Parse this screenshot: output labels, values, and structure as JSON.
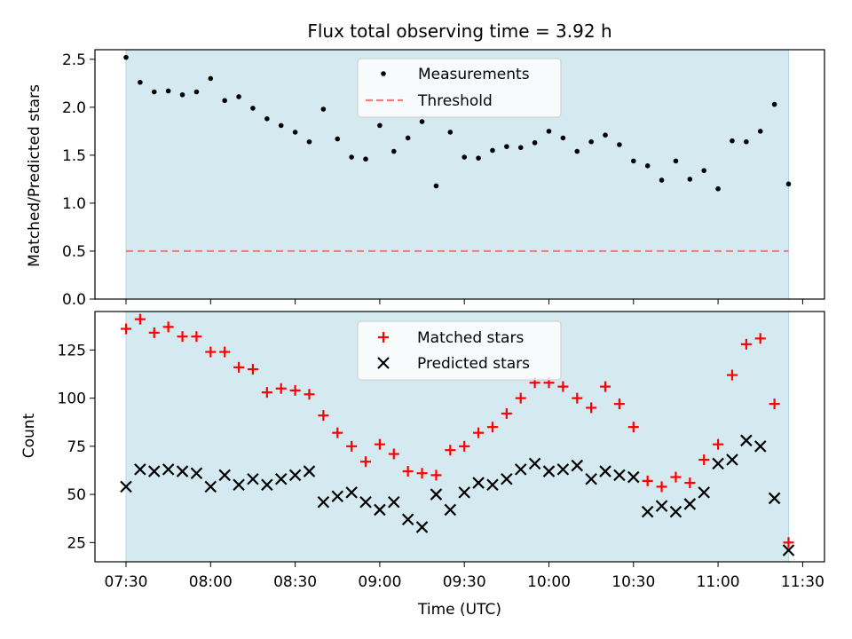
{
  "chart_data": [
    {
      "type": "scatter",
      "title": "Flux total observing time = 3.92 h",
      "xlabel": "",
      "ylabel": "Matched/Predicted stars",
      "ylim": [
        0,
        2.6
      ],
      "yticks": [
        "0.0",
        "0.5",
        "1.0",
        "1.5",
        "2.0",
        "2.5"
      ],
      "grid": false,
      "legend": "top-center",
      "shaded_interval": [
        "07:30",
        "11:25"
      ],
      "colors": {
        "shade": "#d4eaf0",
        "measurements": "#000000",
        "threshold": "#f08080"
      },
      "series": [
        {
          "name": "Measurements",
          "marker": "dot",
          "x": [
            "07:30",
            "07:35",
            "07:40",
            "07:45",
            "07:50",
            "07:55",
            "08:00",
            "08:05",
            "08:10",
            "08:15",
            "08:20",
            "08:25",
            "08:30",
            "08:35",
            "08:40",
            "08:45",
            "08:50",
            "08:55",
            "09:00",
            "09:05",
            "09:10",
            "09:15",
            "09:20",
            "09:25",
            "09:30",
            "09:35",
            "09:40",
            "09:45",
            "09:50",
            "09:55",
            "10:00",
            "10:05",
            "10:10",
            "10:15",
            "10:20",
            "10:25",
            "10:30",
            "10:35",
            "10:40",
            "10:45",
            "10:50",
            "10:55",
            "11:00",
            "11:05",
            "11:10",
            "11:15",
            "11:20",
            "11:25"
          ],
          "values": [
            2.52,
            2.26,
            2.16,
            2.17,
            2.13,
            2.16,
            2.3,
            2.07,
            2.11,
            1.99,
            1.88,
            1.81,
            1.74,
            1.64,
            1.98,
            1.67,
            1.48,
            1.46,
            1.81,
            1.54,
            1.68,
            1.85,
            1.18,
            1.74,
            1.48,
            1.47,
            1.55,
            1.59,
            1.58,
            1.63,
            1.75,
            1.68,
            1.54,
            1.64,
            1.71,
            1.61,
            1.44,
            1.39,
            1.24,
            1.44,
            1.25,
            1.34,
            1.15,
            1.65,
            1.64,
            1.75,
            2.03,
            1.2
          ]
        },
        {
          "name": "Threshold",
          "marker": "dashed-line",
          "x": [
            "07:30",
            "11:25"
          ],
          "values": [
            0.5,
            0.5
          ]
        }
      ]
    },
    {
      "type": "scatter",
      "title": "",
      "xlabel": "Time (UTC)",
      "ylabel": "Count",
      "ylim": [
        15,
        145
      ],
      "yticks": [
        "25",
        "50",
        "75",
        "100",
        "125"
      ],
      "xticks": [
        "07:30",
        "08:00",
        "08:30",
        "09:00",
        "09:30",
        "10:00",
        "10:30",
        "11:00",
        "11:30"
      ],
      "grid": false,
      "legend": "top-center",
      "shaded_interval": [
        "07:30",
        "11:25"
      ],
      "colors": {
        "shade": "#d4eaf0",
        "matched": "#ff0000",
        "predicted": "#000000"
      },
      "series": [
        {
          "name": "Matched stars",
          "marker": "plus",
          "x": [
            "07:30",
            "07:35",
            "07:40",
            "07:45",
            "07:50",
            "07:55",
            "08:00",
            "08:05",
            "08:10",
            "08:15",
            "08:20",
            "08:25",
            "08:30",
            "08:35",
            "08:40",
            "08:45",
            "08:50",
            "08:55",
            "09:00",
            "09:05",
            "09:10",
            "09:15",
            "09:20",
            "09:25",
            "09:30",
            "09:35",
            "09:40",
            "09:45",
            "09:50",
            "09:55",
            "10:00",
            "10:05",
            "10:10",
            "10:15",
            "10:20",
            "10:25",
            "10:30",
            "10:35",
            "10:40",
            "10:45",
            "10:50",
            "10:55",
            "11:00",
            "11:05",
            "11:10",
            "11:15",
            "11:20",
            "11:25"
          ],
          "values": [
            136,
            141,
            134,
            137,
            132,
            132,
            124,
            124,
            116,
            115,
            103,
            105,
            104,
            102,
            91,
            82,
            75,
            67,
            76,
            71,
            62,
            61,
            60,
            73,
            75,
            82,
            85,
            92,
            100,
            108,
            108,
            106,
            100,
            95,
            106,
            97,
            85,
            57,
            54,
            59,
            56,
            68,
            76,
            112,
            128,
            131,
            97,
            25
          ]
        },
        {
          "name": "Predicted stars",
          "marker": "x",
          "x": [
            "07:30",
            "07:35",
            "07:40",
            "07:45",
            "07:50",
            "07:55",
            "08:00",
            "08:05",
            "08:10",
            "08:15",
            "08:20",
            "08:25",
            "08:30",
            "08:35",
            "08:40",
            "08:45",
            "08:50",
            "08:55",
            "09:00",
            "09:05",
            "09:10",
            "09:15",
            "09:20",
            "09:25",
            "09:30",
            "09:35",
            "09:40",
            "09:45",
            "09:50",
            "09:55",
            "10:00",
            "10:05",
            "10:10",
            "10:15",
            "10:20",
            "10:25",
            "10:30",
            "10:35",
            "10:40",
            "10:45",
            "10:50",
            "10:55",
            "11:00",
            "11:05",
            "11:10",
            "11:15",
            "11:20",
            "11:25"
          ],
          "values": [
            54,
            63,
            62,
            63,
            62,
            61,
            54,
            60,
            55,
            58,
            55,
            58,
            60,
            62,
            46,
            49,
            51,
            46,
            42,
            46,
            37,
            33,
            50,
            42,
            51,
            56,
            55,
            58,
            63,
            66,
            62,
            63,
            65,
            58,
            62,
            60,
            59,
            41,
            44,
            41,
            45,
            51,
            66,
            68,
            78,
            75,
            48,
            21
          ]
        }
      ]
    }
  ]
}
